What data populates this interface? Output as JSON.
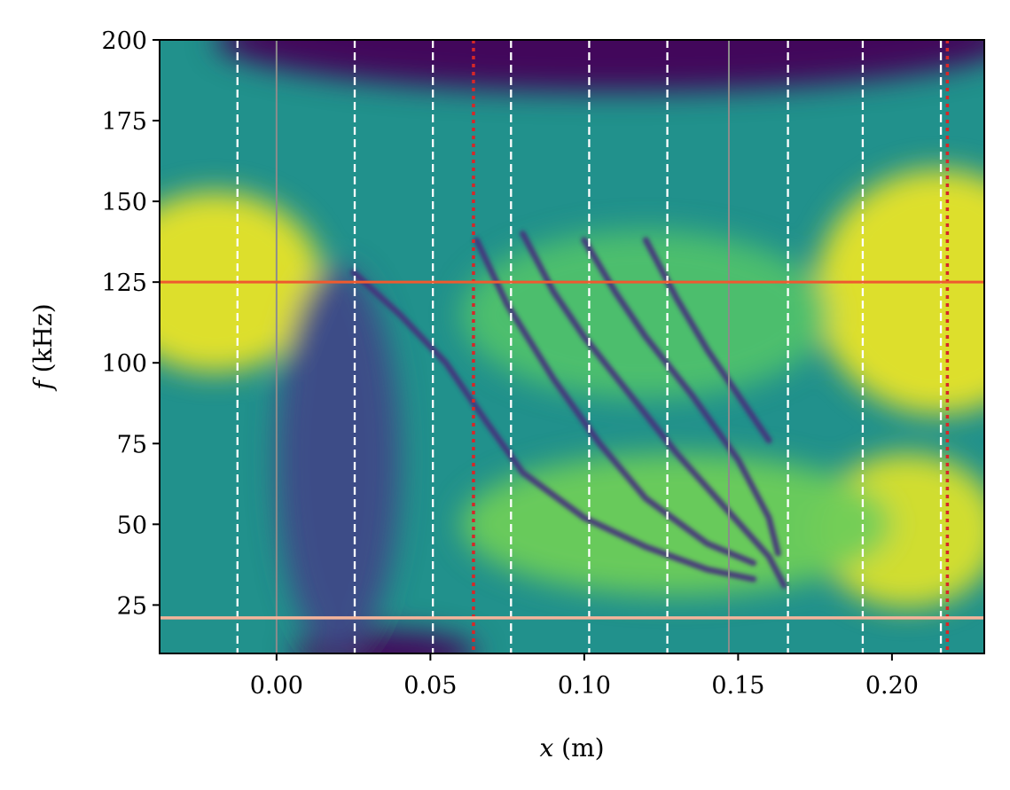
{
  "chart_data": {
    "type": "heatmap",
    "title": "",
    "xlabel": {
      "var": "x",
      "unit": "(m)"
    },
    "ylabel": {
      "var": "f",
      "unit": "(kHz)"
    },
    "xlim": [
      -0.038,
      0.23
    ],
    "ylim": [
      10,
      200
    ],
    "x_ticks": [
      0.0,
      0.05,
      0.1,
      0.15,
      0.2
    ],
    "x_tick_labels": [
      "0.00",
      "0.05",
      "0.10",
      "0.15",
      "0.20"
    ],
    "y_ticks": [
      25,
      50,
      75,
      100,
      125,
      150,
      175,
      200
    ],
    "y_tick_labels": [
      "25",
      "50",
      "75",
      "100",
      "125",
      "150",
      "175",
      "200"
    ],
    "colormap": "viridis",
    "colors": {
      "background_level": "#21918c",
      "white_dashed": "#ffffff",
      "gray_solid": "#8c8c8c",
      "red_dotted": "#d62728",
      "orange_line": "#ee5a2f",
      "peach_line": "#f4b49a"
    },
    "reference_lines": {
      "vertical_white_dashed": [
        -0.0127,
        0.0254,
        0.0508,
        0.0762,
        0.1016,
        0.127,
        0.1662,
        0.1905,
        0.2159
      ],
      "vertical_gray_solid": [
        0.0,
        0.147
      ],
      "vertical_red_dotted": [
        0.064,
        0.218
      ],
      "horizontal_orange": 125,
      "horizontal_peach": 21
    },
    "ridges": [
      {
        "name": "ridge-1",
        "points": [
          [
            0.025,
            128
          ],
          [
            0.04,
            115
          ],
          [
            0.055,
            100
          ],
          [
            0.068,
            82
          ],
          [
            0.08,
            66
          ],
          [
            0.1,
            52
          ],
          [
            0.12,
            43
          ],
          [
            0.14,
            36
          ],
          [
            0.155,
            33
          ]
        ]
      },
      {
        "name": "ridge-2",
        "points": [
          [
            0.065,
            138
          ],
          [
            0.075,
            118
          ],
          [
            0.09,
            95
          ],
          [
            0.105,
            75
          ],
          [
            0.12,
            58
          ],
          [
            0.14,
            44
          ],
          [
            0.155,
            38
          ]
        ]
      },
      {
        "name": "ridge-3",
        "points": [
          [
            0.08,
            140
          ],
          [
            0.09,
            122
          ],
          [
            0.1,
            108
          ],
          [
            0.115,
            90
          ],
          [
            0.13,
            72
          ],
          [
            0.145,
            56
          ],
          [
            0.16,
            40
          ],
          [
            0.165,
            31
          ]
        ]
      },
      {
        "name": "ridge-4",
        "points": [
          [
            0.1,
            138
          ],
          [
            0.11,
            122
          ],
          [
            0.12,
            108
          ],
          [
            0.135,
            90
          ],
          [
            0.15,
            70
          ],
          [
            0.16,
            52
          ],
          [
            0.163,
            41
          ]
        ]
      },
      {
        "name": "ridge-5",
        "points": [
          [
            0.12,
            138
          ],
          [
            0.13,
            120
          ],
          [
            0.14,
            104
          ],
          [
            0.15,
            90
          ],
          [
            0.16,
            76
          ]
        ]
      }
    ],
    "hotspots": [
      {
        "name": "yellow-left",
        "x": -0.02,
        "y": 125,
        "rx": 0.035,
        "ry": 28,
        "level": 0.97
      },
      {
        "name": "yellow-right",
        "x": 0.215,
        "y": 122,
        "rx": 0.04,
        "ry": 38,
        "level": 0.97
      },
      {
        "name": "yellow-bottom-right",
        "x": 0.205,
        "y": 48,
        "rx": 0.03,
        "ry": 24,
        "level": 0.95
      },
      {
        "name": "green-middle",
        "x": 0.12,
        "y": 115,
        "rx": 0.06,
        "ry": 26,
        "level": 0.72
      },
      {
        "name": "green-lower",
        "x": 0.13,
        "y": 50,
        "rx": 0.07,
        "ry": 22,
        "level": 0.78
      },
      {
        "name": "dark-top",
        "x": 0.11,
        "y": 200,
        "rx": 0.13,
        "ry": 16,
        "level": 0.02
      },
      {
        "name": "dark-bottom",
        "x": 0.035,
        "y": 10,
        "rx": 0.03,
        "ry": 7,
        "level": 0.02
      },
      {
        "name": "dark-band",
        "x": 0.02,
        "y": 70,
        "rx": 0.02,
        "ry": 60,
        "level": 0.28
      }
    ]
  }
}
